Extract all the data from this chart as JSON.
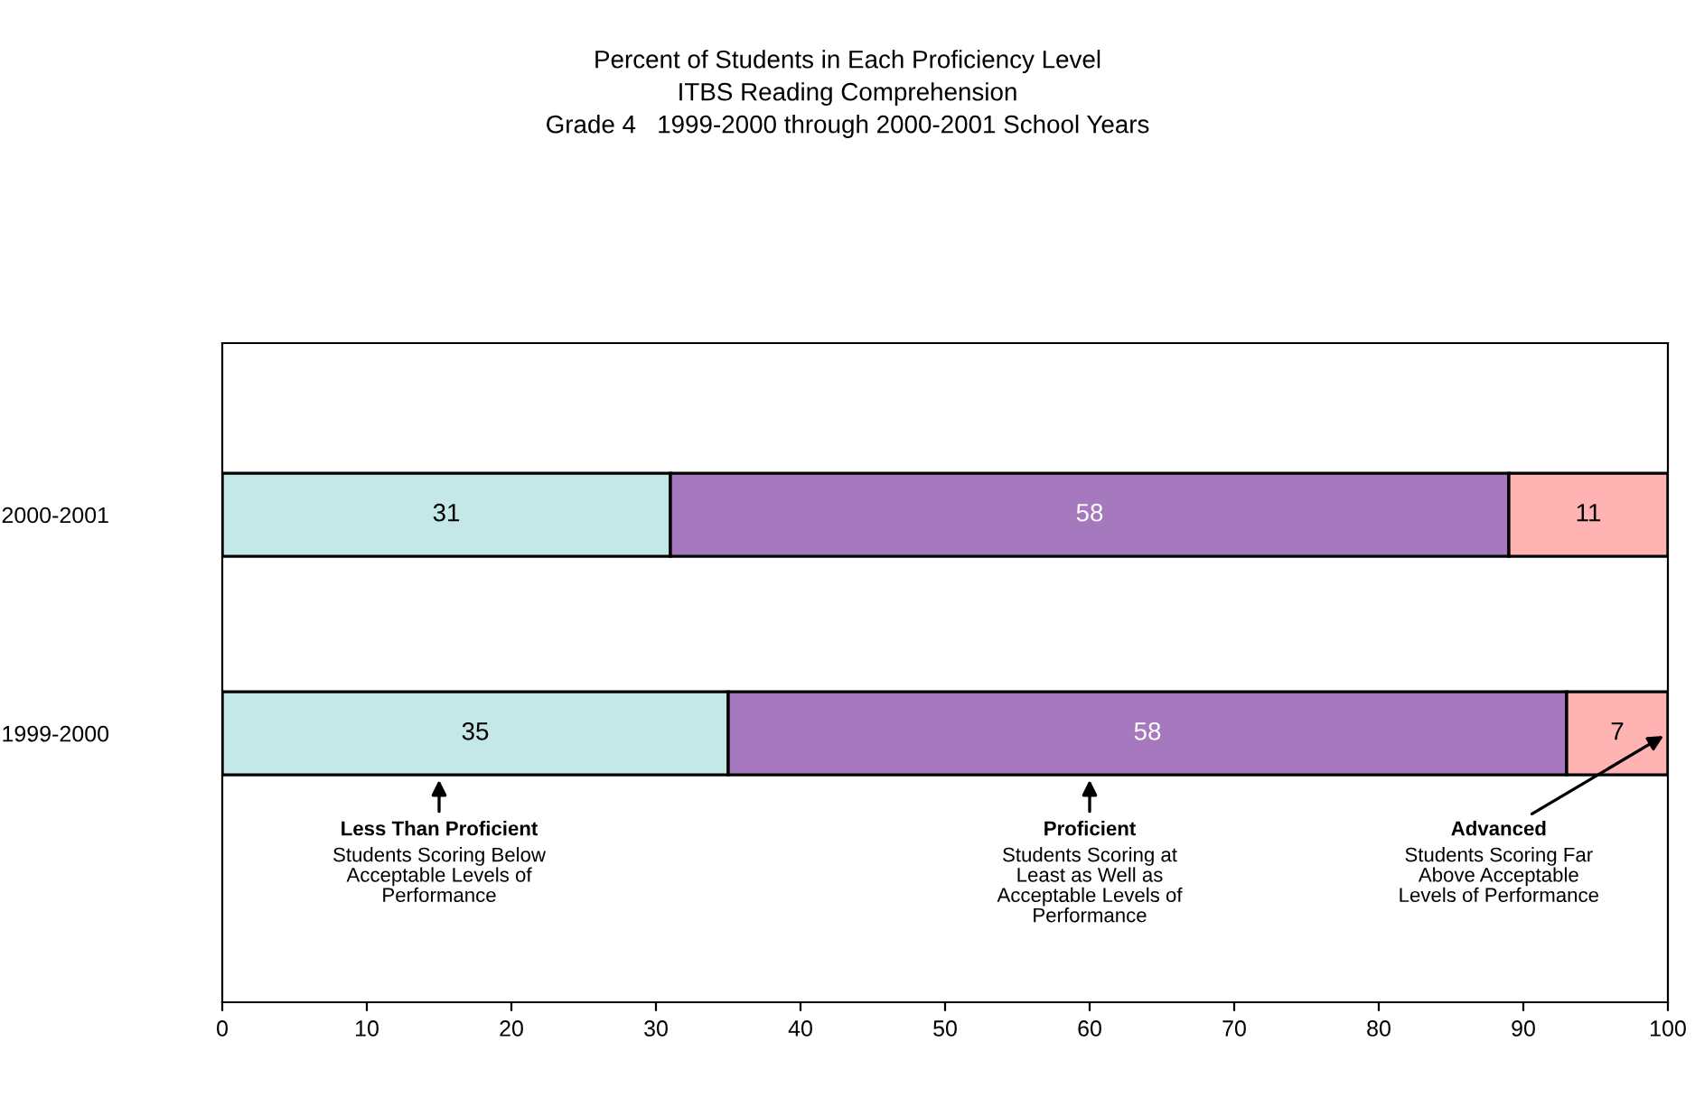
{
  "chart_data": {
    "type": "bar",
    "orientation": "horizontal",
    "stacked": true,
    "title": "Percent of Students in Each Proficiency Level\nITBS Reading Comprehension\nGrade 4   1999-2000 through 2000-2001 School Years",
    "categories": [
      "2000-2001",
      "1999-2000"
    ],
    "series": [
      {
        "color": "#c4e8e8",
        "values": [
          31,
          35
        ]
      },
      {
        "color": "#a679bf",
        "values": [
          58,
          58
        ]
      },
      {
        "color": "#ffb3b3",
        "values": [
          11,
          7
        ]
      }
    ],
    "data_labels": true,
    "xlim": [
      0,
      100
    ],
    "xticks": [
      0,
      10,
      20,
      30,
      40,
      50,
      60,
      70,
      80,
      90,
      100
    ],
    "grid": false,
    "legend": false,
    "annotations": [
      "Less Than Proficient\nStudents Scoring Below\nAcceptable Levels of\nPerformance",
      "Proficient\nStudents Scoring at\nLeast as Well as\nAcceptable Levels of\nPerformance",
      {
        "text": "Advanced\nStudents Scoring Far\nAbove Acceptable\nLevels of Performance",
        "x": 100,
        "y": "1999-2000"
      }
    ]
  }
}
